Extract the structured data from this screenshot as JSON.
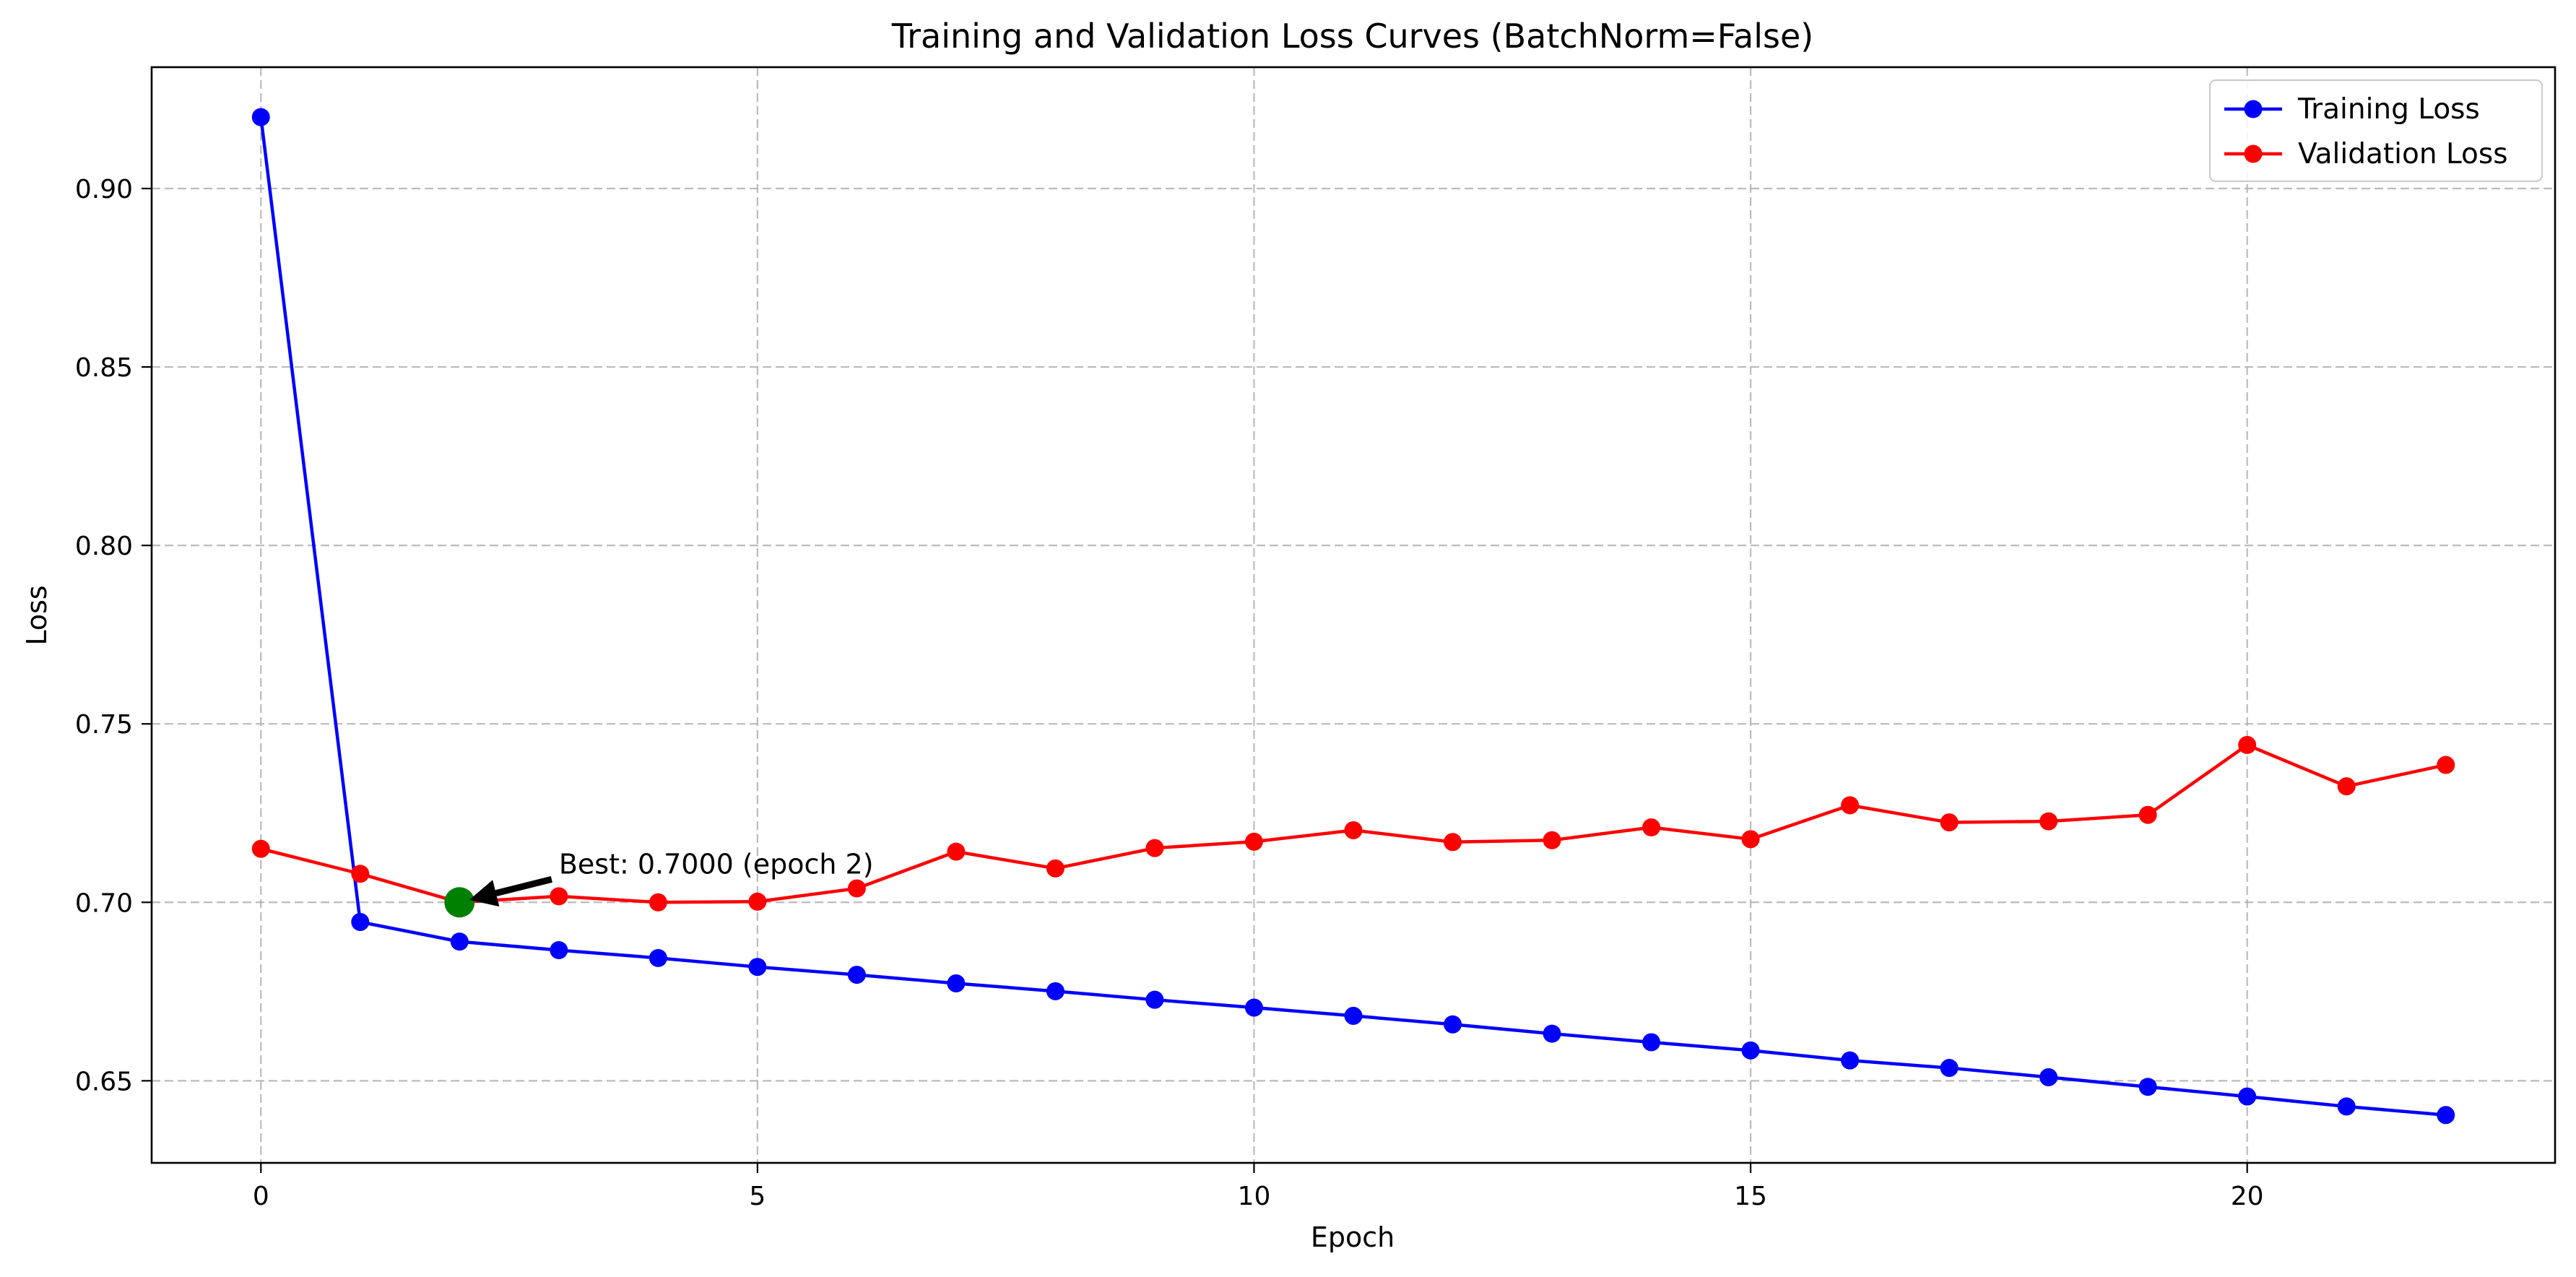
{
  "chart_data": {
    "type": "line",
    "title": "Training and Validation Loss Curves (BatchNorm=False)",
    "xlabel": "Epoch",
    "ylabel": "Loss",
    "x": [
      0,
      1,
      2,
      3,
      4,
      5,
      6,
      7,
      8,
      9,
      10,
      11,
      12,
      13,
      14,
      15,
      16,
      17,
      18,
      19,
      20,
      21,
      22
    ],
    "xlim": [
      -1.1,
      23.1
    ],
    "ylim": [
      0.627,
      0.934
    ],
    "xticks": [
      0,
      5,
      10,
      15,
      20
    ],
    "yticks": [
      0.65,
      0.7,
      0.75,
      0.8,
      0.85,
      0.9
    ],
    "xtick_labels": [
      "0",
      "5",
      "10",
      "15",
      "20"
    ],
    "ytick_labels": [
      "0.65",
      "0.70",
      "0.75",
      "0.80",
      "0.85",
      "0.90"
    ],
    "grid": true,
    "legend_position": "top-right",
    "series": [
      {
        "name": "Training Loss",
        "color": "#0000ff",
        "marker": "circle",
        "values": [
          0.92,
          0.6945,
          0.689,
          0.6866,
          0.6844,
          0.6819,
          0.6797,
          0.6773,
          0.6751,
          0.6727,
          0.6705,
          0.6682,
          0.6658,
          0.6632,
          0.6608,
          0.6585,
          0.6557,
          0.6536,
          0.651,
          0.6483,
          0.6456,
          0.6428,
          0.6404
        ]
      },
      {
        "name": "Validation Loss",
        "color": "#ff0000",
        "marker": "circle",
        "values": [
          0.715,
          0.708,
          0.7,
          0.7017,
          0.7,
          0.7002,
          0.7039,
          0.7142,
          0.7095,
          0.7152,
          0.717,
          0.7202,
          0.7169,
          0.7174,
          0.721,
          0.7177,
          0.7272,
          0.7224,
          0.7227,
          0.7245,
          0.7441,
          0.7325,
          0.7385
        ]
      }
    ],
    "annotation": {
      "text": "Best: 0.7000 (epoch 2)",
      "x": 2,
      "y": 0.7,
      "text_x": 3,
      "text_y": 0.7105,
      "marker_color": "#008000",
      "arrow_color": "#000000"
    }
  }
}
